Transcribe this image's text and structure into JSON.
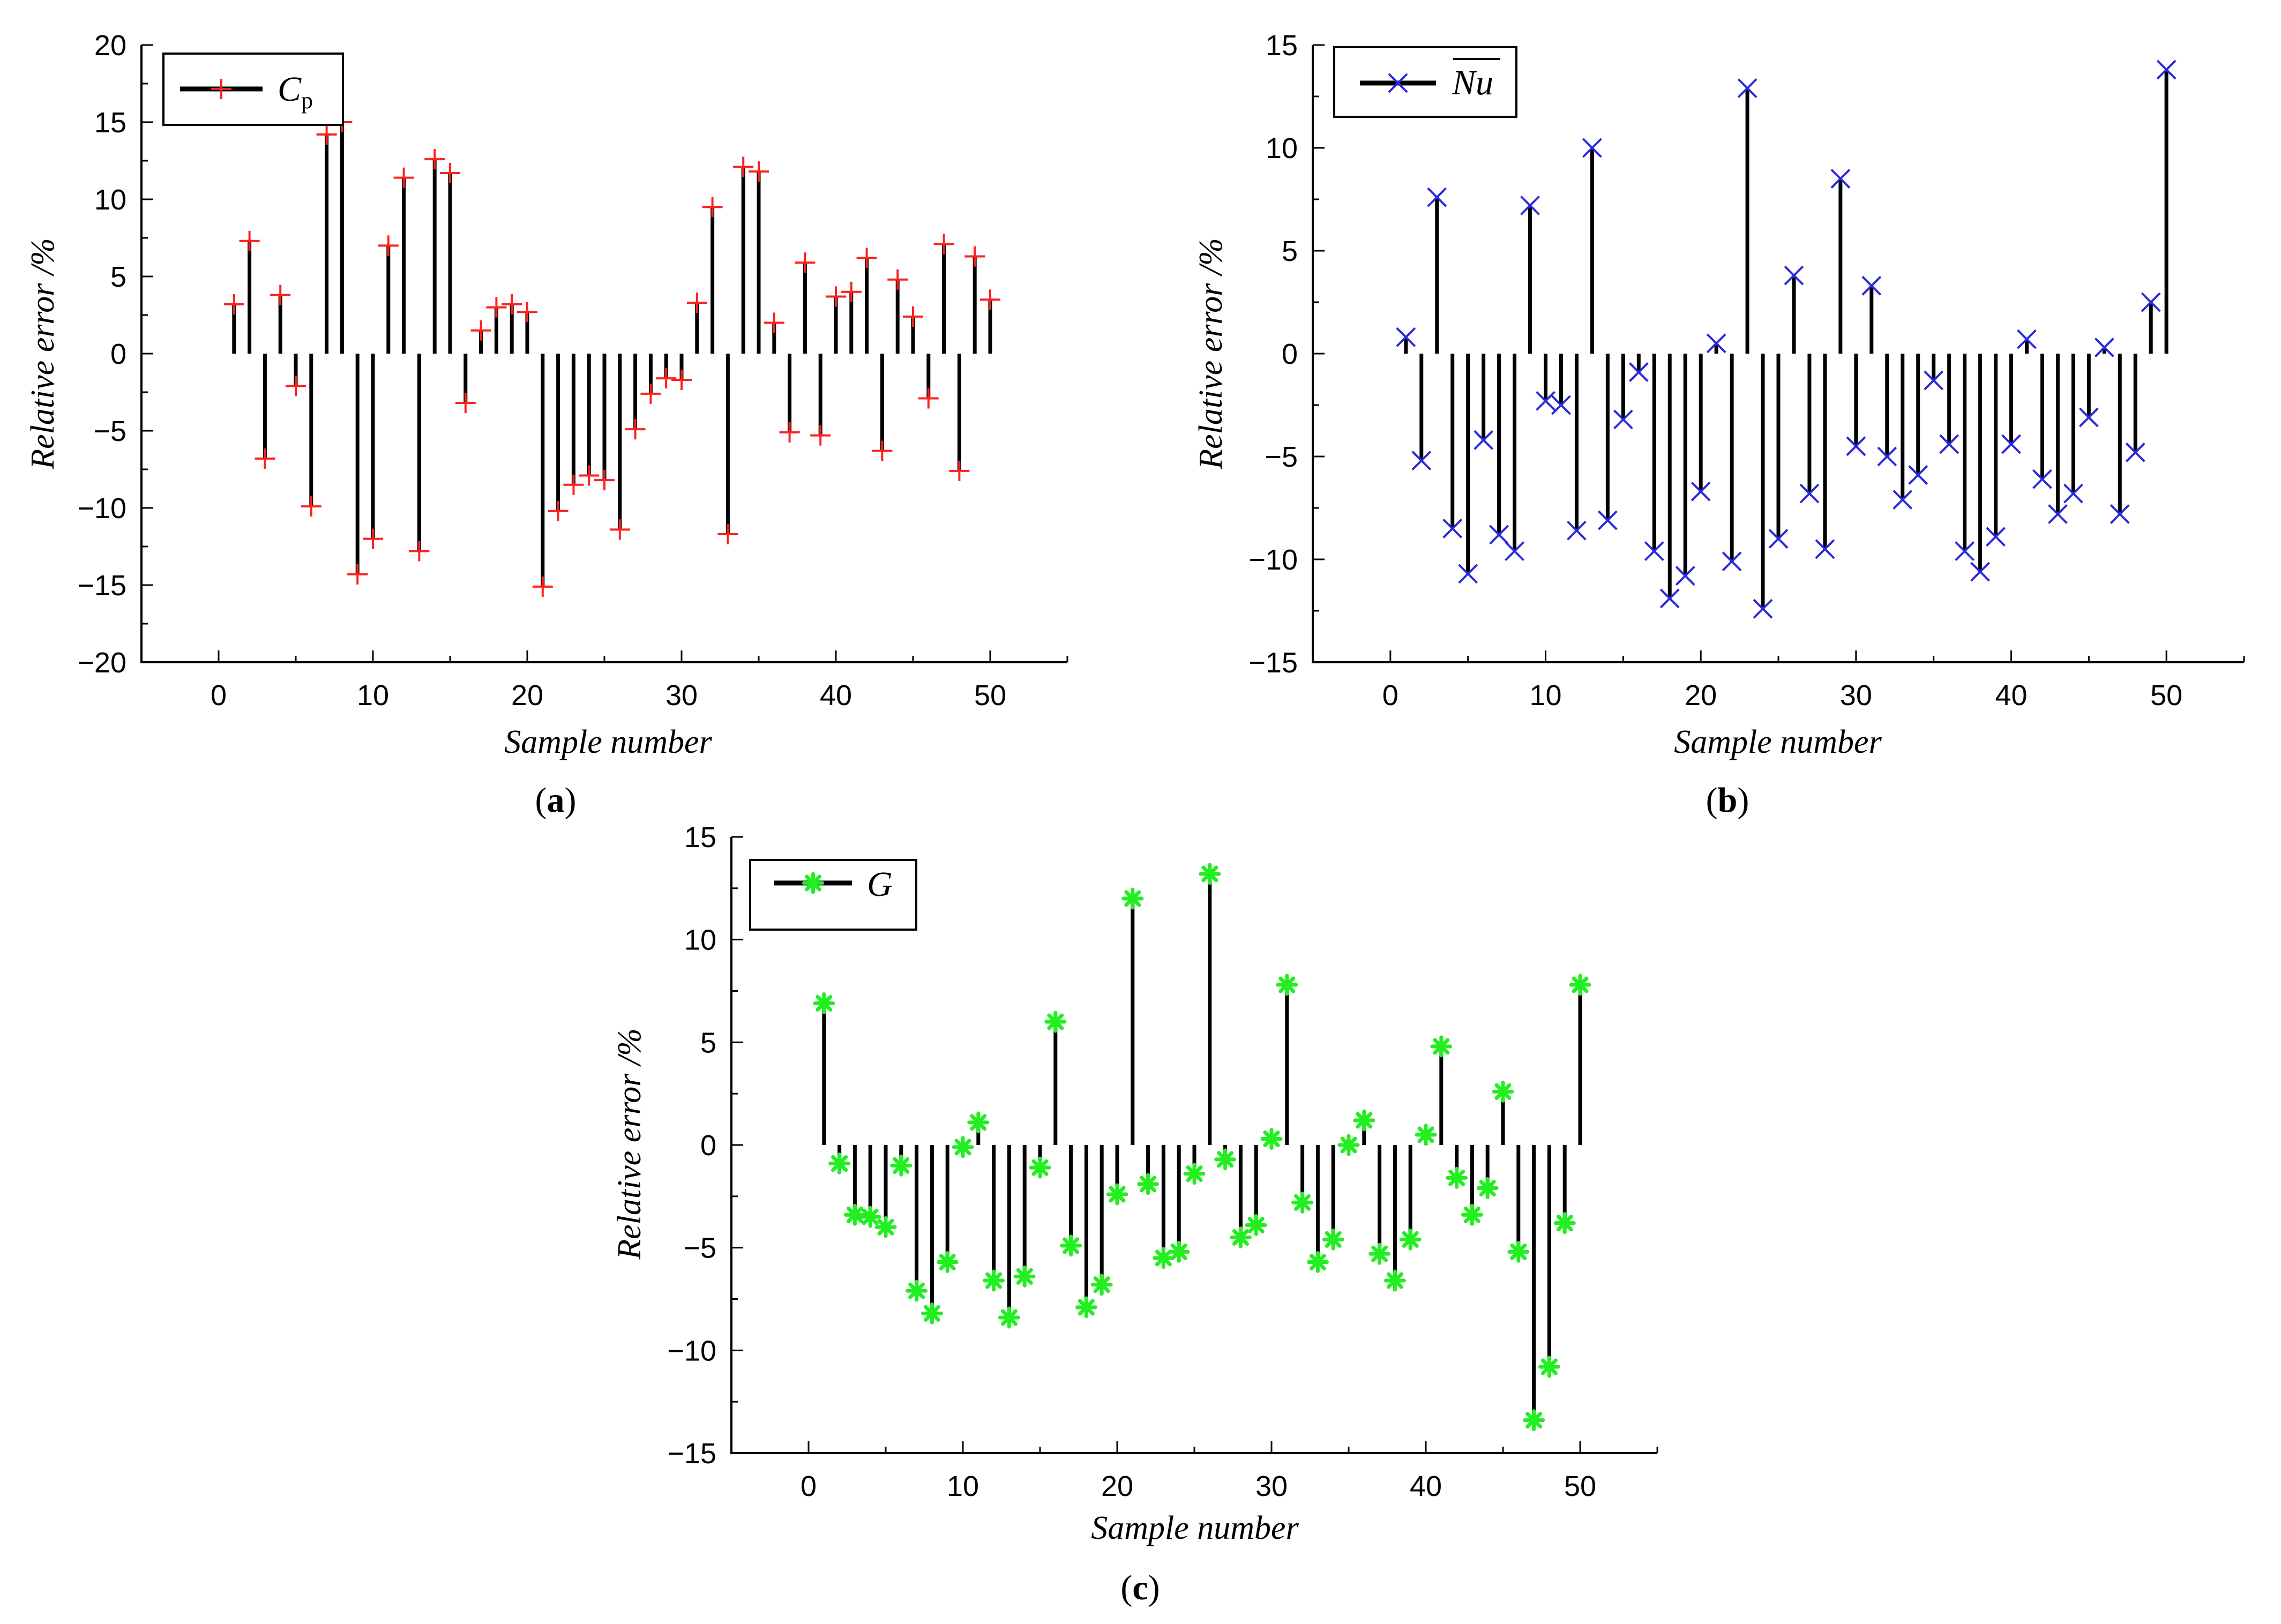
{
  "figure": {
    "panels": [
      {
        "label_open": "(",
        "label_letter": "a",
        "label_close": ")"
      },
      {
        "label_open": "(",
        "label_letter": "b",
        "label_close": ")"
      },
      {
        "label_open": "(",
        "label_letter": "c",
        "label_close": ")"
      }
    ]
  },
  "colors": {
    "stem": "#000000",
    "axis": "#000000",
    "cp_marker": "#ff2020",
    "nu_marker": "#2a2ad8",
    "g_marker": "#22ee22"
  },
  "chart_data": [
    {
      "type": "stem",
      "panel": "a",
      "title": "",
      "xlabel": "Sample number",
      "ylabel": "Relative error /%",
      "xlim": [
        -5,
        55
      ],
      "ylim": [
        -20,
        20
      ],
      "xticks": [
        0,
        10,
        20,
        30,
        40,
        50
      ],
      "yticks": [
        -20,
        -15,
        -10,
        -5,
        0,
        5,
        10,
        15,
        20
      ],
      "legend": {
        "name_main": "C",
        "name_sub": "p",
        "marker": "plus",
        "position": "top-left"
      },
      "x": [
        1,
        2,
        3,
        4,
        5,
        6,
        7,
        8,
        9,
        10,
        11,
        12,
        13,
        14,
        15,
        16,
        17,
        18,
        19,
        20,
        21,
        22,
        23,
        24,
        25,
        26,
        27,
        28,
        29,
        30,
        31,
        32,
        33,
        34,
        35,
        36,
        37,
        38,
        39,
        40,
        41,
        42,
        43,
        44,
        45,
        46,
        47,
        48,
        49,
        50
      ],
      "values": [
        3.2,
        7.3,
        -6.8,
        3.8,
        -2.1,
        -9.9,
        14.2,
        15.0,
        -14.3,
        -12.0,
        7.0,
        11.4,
        -12.8,
        12.6,
        11.7,
        -3.2,
        1.5,
        3.0,
        3.2,
        2.7,
        -15.1,
        -10.2,
        -8.5,
        -7.9,
        -8.2,
        -11.4,
        -4.9,
        -2.6,
        -1.6,
        -1.7,
        3.3,
        9.5,
        -11.7,
        12.1,
        11.8,
        2.0,
        -5.1,
        5.9,
        -5.3,
        3.7,
        4.0,
        6.2,
        -6.3,
        4.8,
        2.4,
        -2.9,
        7.1,
        -7.6,
        6.3,
        3.5
      ]
    },
    {
      "type": "stem",
      "panel": "b",
      "title": "",
      "xlabel": "Sample number",
      "ylabel": "Relative error /%",
      "xlim": [
        -5,
        55
      ],
      "ylim": [
        -15,
        15
      ],
      "xticks": [
        0,
        10,
        20,
        30,
        40,
        50
      ],
      "yticks": [
        -15,
        -10,
        -5,
        0,
        5,
        10,
        15
      ],
      "legend": {
        "name_main": "Nu",
        "overline": true,
        "marker": "x",
        "position": "top-left"
      },
      "x": [
        1,
        2,
        3,
        4,
        5,
        6,
        7,
        8,
        9,
        10,
        11,
        12,
        13,
        14,
        15,
        16,
        17,
        18,
        19,
        20,
        21,
        22,
        23,
        24,
        25,
        26,
        27,
        28,
        29,
        30,
        31,
        32,
        33,
        34,
        35,
        36,
        37,
        38,
        39,
        40,
        41,
        42,
        43,
        44,
        45,
        46,
        47,
        48,
        49,
        50
      ],
      "values": [
        0.8,
        -5.2,
        7.6,
        -8.5,
        -10.7,
        -4.2,
        -8.8,
        -9.6,
        7.2,
        -2.3,
        -2.5,
        -8.6,
        10.0,
        -8.1,
        -3.2,
        -0.9,
        -9.6,
        -11.9,
        -10.8,
        -6.7,
        0.5,
        -10.1,
        12.9,
        -12.4,
        -9.0,
        3.8,
        -6.8,
        -9.5,
        8.5,
        -4.5,
        3.3,
        -5.0,
        -7.1,
        -5.9,
        -1.3,
        -4.4,
        -9.6,
        -10.6,
        -8.9,
        -4.4,
        0.7,
        -6.1,
        -7.8,
        -6.8,
        -3.1,
        0.3,
        -7.8,
        -4.8,
        2.5,
        13.8
      ]
    },
    {
      "type": "stem",
      "panel": "c",
      "title": "",
      "xlabel": "Sample number",
      "ylabel": "Relative error /%",
      "xlim": [
        -5,
        55
      ],
      "ylim": [
        -15,
        15
      ],
      "xticks": [
        0,
        10,
        20,
        30,
        40,
        50
      ],
      "yticks": [
        -15,
        -10,
        -5,
        0,
        5,
        10,
        15
      ],
      "legend": {
        "name_main": "G",
        "marker": "asterisk",
        "position": "top-left"
      },
      "x": [
        1,
        2,
        3,
        4,
        5,
        6,
        7,
        8,
        9,
        10,
        11,
        12,
        13,
        14,
        15,
        16,
        17,
        18,
        19,
        20,
        21,
        22,
        23,
        24,
        25,
        26,
        27,
        28,
        29,
        30,
        31,
        32,
        33,
        34,
        35,
        36,
        37,
        38,
        39,
        40,
        41,
        42,
        43,
        44,
        45,
        46,
        47,
        48,
        49,
        50
      ],
      "values": [
        6.9,
        -0.9,
        -3.4,
        -3.5,
        -4.0,
        -1.0,
        -7.1,
        -8.2,
        -5.7,
        -0.1,
        1.1,
        -6.6,
        -8.4,
        -6.4,
        -1.1,
        6.0,
        -4.9,
        -7.9,
        -6.8,
        -2.4,
        12.0,
        -1.9,
        -5.5,
        -5.2,
        -1.4,
        13.2,
        -0.7,
        -4.5,
        -3.9,
        0.3,
        7.8,
        -2.8,
        -5.7,
        -4.6,
        0.0,
        1.2,
        -5.3,
        -6.6,
        -4.6,
        0.5,
        4.8,
        -1.6,
        -3.4,
        -2.1,
        2.6,
        -5.2,
        -13.4,
        -10.8,
        -3.8,
        7.8
      ]
    }
  ]
}
